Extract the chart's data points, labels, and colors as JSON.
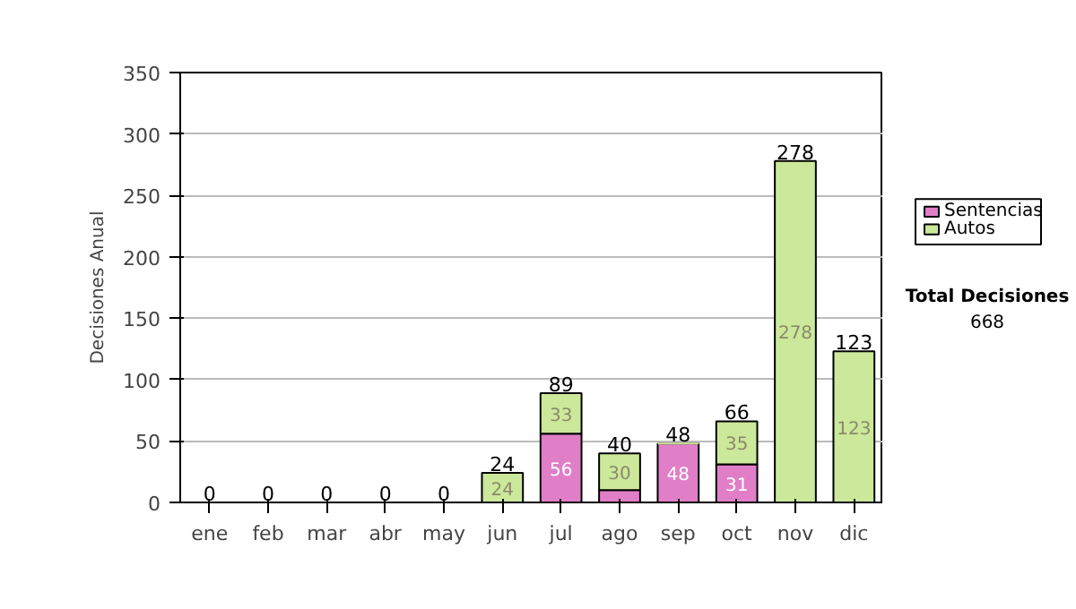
{
  "chart_data": {
    "type": "bar",
    "stacked": true,
    "ylabel": "Decisiones Anual",
    "categories": [
      "ene",
      "feb",
      "mar",
      "abr",
      "may",
      "jun",
      "jul",
      "ago",
      "sep",
      "oct",
      "nov",
      "dic"
    ],
    "series": [
      {
        "name": "Sentencias",
        "color": "#e07fc8",
        "values": [
          0,
          0,
          0,
          0,
          0,
          0,
          56,
          10,
          48,
          31,
          0,
          0
        ],
        "value_labels": [
          null,
          null,
          null,
          null,
          null,
          null,
          "56",
          null,
          "48",
          "31",
          null,
          null
        ]
      },
      {
        "name": "Autos",
        "color": "#cce89a",
        "values": [
          0,
          0,
          0,
          0,
          0,
          24,
          33,
          30,
          0,
          35,
          278,
          123
        ],
        "value_labels": [
          null,
          null,
          null,
          null,
          null,
          "24",
          "33",
          "30",
          null,
          "35",
          "278",
          "123"
        ]
      }
    ],
    "totals": [
      "0",
      "0",
      "0",
      "0",
      "0",
      "24",
      "89",
      "40",
      "48",
      "66",
      "278",
      "123"
    ],
    "ylim": [
      0,
      350
    ],
    "yticks": [
      0,
      50,
      100,
      150,
      200,
      250,
      300,
      350
    ],
    "grid": "y",
    "legend": "right",
    "annotations": [
      "Total Decisiones",
      "668"
    ]
  }
}
